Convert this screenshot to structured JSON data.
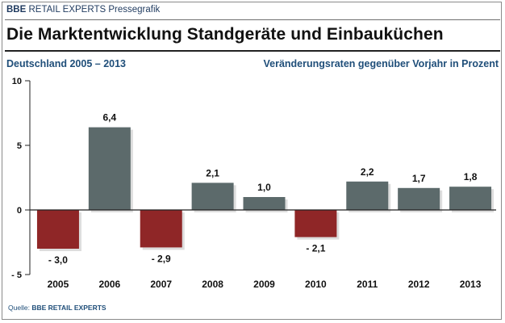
{
  "header": {
    "brand": "BBE",
    "brand_rest": "RETAIL EXPERTS",
    "label": "Pressegrafik"
  },
  "title": "Die Marktentwicklung Standgeräte und Einbauküchen",
  "subtitle_left": "Deutschland 2005 – 2013",
  "subtitle_right": "Veränderungsraten gegenüber Vorjahr in Prozent",
  "source": {
    "prefix": "Quelle:",
    "name": "BBE RETAIL EXPERTS"
  },
  "colors": {
    "positive": "#5c6a6b",
    "negative": "#8f2627",
    "axis": "#222222",
    "text": "#111111",
    "accent": "#1f4e79"
  },
  "chart_data": {
    "type": "bar",
    "title": "Die Marktentwicklung Standgeräte und Einbauküchen",
    "xlabel": "",
    "ylabel": "Veränderungsraten gegenüber Vorjahr in Prozent",
    "categories": [
      "2005",
      "2006",
      "2007",
      "2008",
      "2009",
      "2010",
      "2011",
      "2012",
      "2013"
    ],
    "values": [
      -3.0,
      6.4,
      -2.9,
      2.1,
      1.0,
      -2.1,
      2.2,
      1.7,
      1.8
    ],
    "value_labels": [
      "- 3,0",
      "6,4",
      "- 2,9",
      "2,1",
      "1,0",
      "- 2,1",
      "2,2",
      "1,7",
      "1,8"
    ],
    "ylim": [
      -5,
      10
    ],
    "yticks": [
      10,
      5,
      0,
      -5
    ],
    "ytick_labels": [
      "10",
      "5",
      "0",
      "- 5"
    ],
    "grid": false,
    "legend": "none"
  }
}
